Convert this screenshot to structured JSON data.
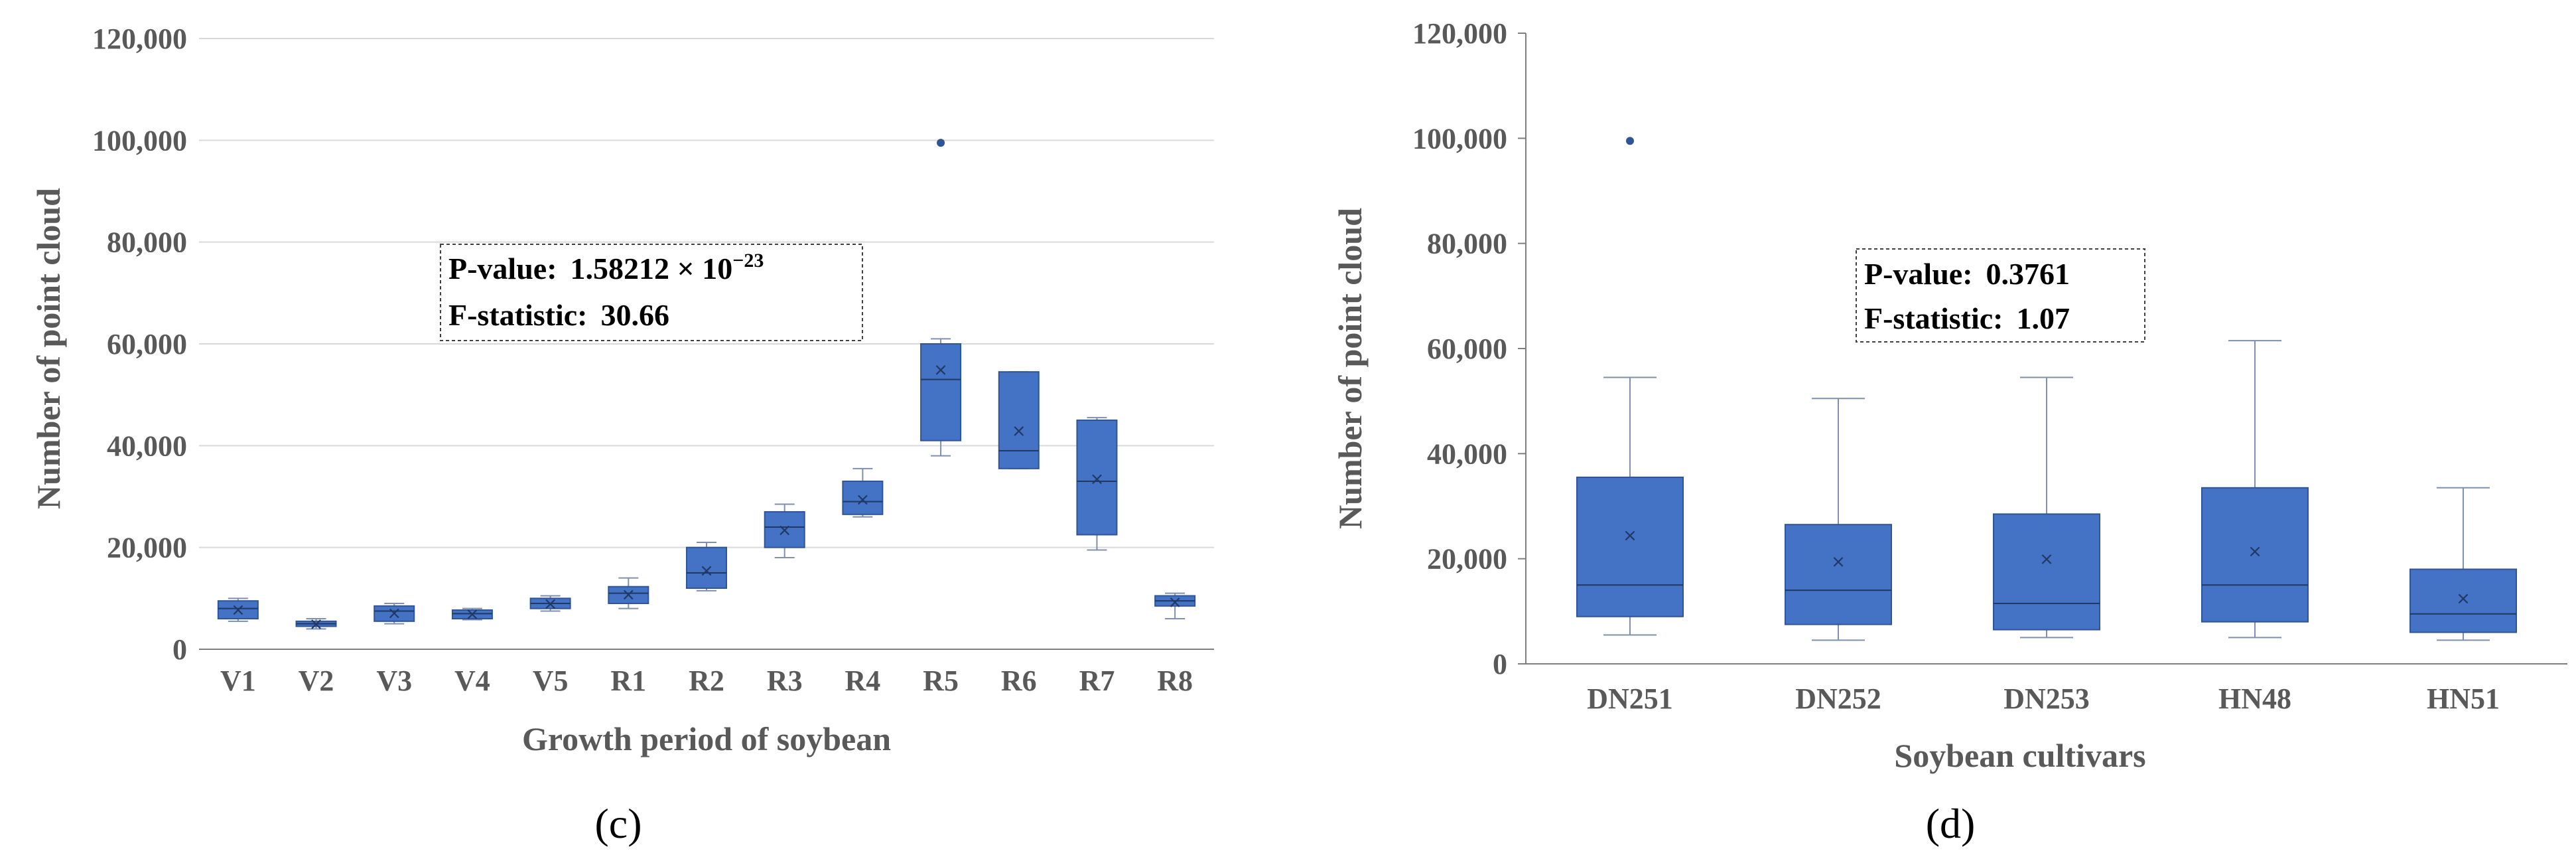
{
  "chart_data": [
    {
      "panel_label": "(c)",
      "type": "box",
      "xlabel": "Growth period of soybean",
      "ylabel": "Number of point cloud",
      "ylim": [
        0,
        120000
      ],
      "yticks": [
        0,
        20000,
        40000,
        60000,
        80000,
        100000,
        120000
      ],
      "ytick_labels": [
        "0",
        "20,000",
        "40,000",
        "60,000",
        "80,000",
        "100,000",
        "120,000"
      ],
      "grid": true,
      "categories": [
        "V1",
        "V2",
        "V3",
        "V4",
        "V5",
        "R1",
        "R2",
        "R3",
        "R4",
        "R5",
        "R6",
        "R7",
        "R8"
      ],
      "boxes": [
        {
          "min": 5500,
          "q1": 6000,
          "median": 8000,
          "q3": 9500,
          "max": 10000,
          "mean": 7800,
          "outliers": []
        },
        {
          "min": 4000,
          "q1": 4500,
          "median": 5000,
          "q3": 5500,
          "max": 6000,
          "mean": 5000,
          "outliers": []
        },
        {
          "min": 5000,
          "q1": 5500,
          "median": 7500,
          "q3": 8500,
          "max": 9000,
          "mean": 7200,
          "outliers": []
        },
        {
          "min": 5800,
          "q1": 6000,
          "median": 7000,
          "q3": 7700,
          "max": 8000,
          "mean": 7000,
          "outliers": []
        },
        {
          "min": 7500,
          "q1": 8000,
          "median": 9000,
          "q3": 10000,
          "max": 10500,
          "mean": 9000,
          "outliers": []
        },
        {
          "min": 8000,
          "q1": 9000,
          "median": 11000,
          "q3": 12300,
          "max": 14000,
          "mean": 10800,
          "outliers": []
        },
        {
          "min": 11500,
          "q1": 12000,
          "median": 15000,
          "q3": 20000,
          "max": 21000,
          "mean": 15500,
          "outliers": []
        },
        {
          "min": 18000,
          "q1": 20000,
          "median": 24000,
          "q3": 27000,
          "max": 28500,
          "mean": 23500,
          "outliers": []
        },
        {
          "min": 26000,
          "q1": 26500,
          "median": 29000,
          "q3": 33000,
          "max": 35500,
          "mean": 29500,
          "outliers": []
        },
        {
          "min": 38000,
          "q1": 41000,
          "median": 53000,
          "q3": 60000,
          "max": 61000,
          "mean": 55000,
          "outliers": [
            99500
          ]
        },
        {
          "min": 35500,
          "q1": 35500,
          "median": 39000,
          "q3": 54500,
          "max": 54500,
          "mean": 43000,
          "outliers": []
        },
        {
          "min": 19500,
          "q1": 22500,
          "median": 33000,
          "q3": 45000,
          "max": 45500,
          "mean": 33500,
          "outliers": []
        },
        {
          "min": 6000,
          "q1": 8500,
          "median": 9500,
          "q3": 10500,
          "max": 11000,
          "mean": 9300,
          "outliers": []
        }
      ],
      "annotation": {
        "pvalue_label": "P-value:",
        "pvalue_mantissa": "1.58212 × 10",
        "pvalue_exponent": "−23",
        "fstat_label": "F-statistic:",
        "fstat_value": "30.66"
      }
    },
    {
      "panel_label": "(d)",
      "type": "box",
      "xlabel": "Soybean cultivars",
      "ylabel": "Number of point cloud",
      "ylim": [
        0,
        120000
      ],
      "yticks": [
        0,
        20000,
        40000,
        60000,
        80000,
        100000,
        120000
      ],
      "ytick_labels": [
        "0",
        "20,000",
        "40,000",
        "60,000",
        "80,000",
        "100,000",
        "120,000"
      ],
      "grid": false,
      "categories": [
        "DN251",
        "DN252",
        "DN253",
        "HN48",
        "HN51"
      ],
      "boxes": [
        {
          "min": 5500,
          "q1": 9000,
          "median": 15000,
          "q3": 35500,
          "max": 54500,
          "mean": 24500,
          "outliers": [
            99500
          ]
        },
        {
          "min": 4500,
          "q1": 7500,
          "median": 14000,
          "q3": 26500,
          "max": 50500,
          "mean": 19500,
          "outliers": []
        },
        {
          "min": 5000,
          "q1": 6500,
          "median": 11500,
          "q3": 28500,
          "max": 54500,
          "mean": 20000,
          "outliers": []
        },
        {
          "min": 5000,
          "q1": 8000,
          "median": 15000,
          "q3": 33500,
          "max": 61500,
          "mean": 21500,
          "outliers": []
        },
        {
          "min": 4500,
          "q1": 6000,
          "median": 9500,
          "q3": 18000,
          "max": 33500,
          "mean": 12500,
          "outliers": []
        }
      ],
      "annotation": {
        "pvalue_label": "P-value:",
        "pvalue_value": "0.3761",
        "fstat_label": "F-statistic:",
        "fstat_value": "1.07"
      }
    }
  ]
}
